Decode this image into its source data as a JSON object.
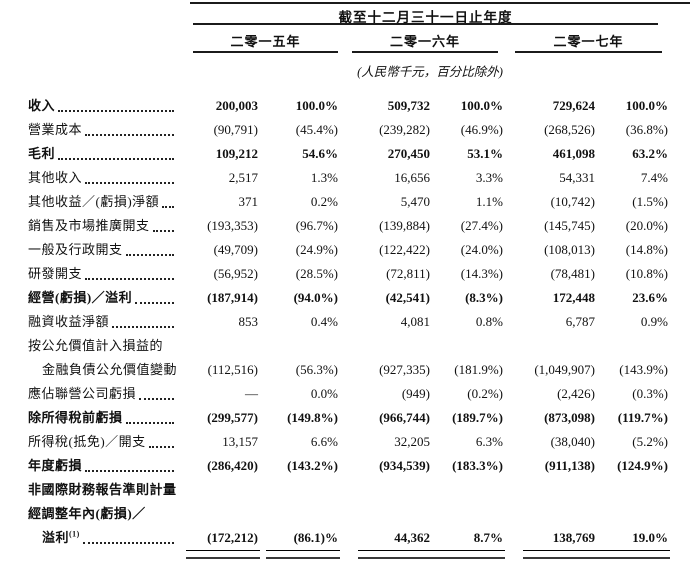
{
  "header": {
    "period_title": "截至十二月三十一日止年度",
    "years": [
      "二零一五年",
      "二零一六年",
      "二零一七年"
    ],
    "unit_note": "(人民幣千元，百分比除外)"
  },
  "table": {
    "columns": [
      "二零一五年 金額",
      "二零一五年 %",
      "二零一六年 金額",
      "二零一六年 %",
      "二零一七年 金額",
      "二零一七年 %"
    ],
    "rows": [
      {
        "label": "收入",
        "bold": true,
        "leader": true,
        "indent": false,
        "values": [
          "200,003",
          "100.0%",
          "509,732",
          "100.0%",
          "729,624",
          "100.0%"
        ]
      },
      {
        "label": "營業成本",
        "bold": false,
        "leader": true,
        "indent": false,
        "values": [
          "(90,791)",
          "(45.4%)",
          "(239,282)",
          "(46.9%)",
          "(268,526)",
          "(36.8%)"
        ]
      },
      {
        "label": "毛利",
        "bold": true,
        "leader": true,
        "indent": false,
        "values": [
          "109,212",
          "54.6%",
          "270,450",
          "53.1%",
          "461,098",
          "63.2%"
        ]
      },
      {
        "label": "其他收入",
        "bold": false,
        "leader": true,
        "indent": false,
        "values": [
          "2,517",
          "1.3%",
          "16,656",
          "3.3%",
          "54,331",
          "7.4%"
        ]
      },
      {
        "label": "其他收益／(虧損)淨額",
        "bold": false,
        "leader": true,
        "indent": false,
        "values": [
          "371",
          "0.2%",
          "5,470",
          "1.1%",
          "(10,742)",
          "(1.5%)"
        ]
      },
      {
        "label": "銷售及市場推廣開支",
        "bold": false,
        "leader": true,
        "indent": false,
        "values": [
          "(193,353)",
          "(96.7%)",
          "(139,884)",
          "(27.4%)",
          "(145,745)",
          "(20.0%)"
        ]
      },
      {
        "label": "一般及行政開支",
        "bold": false,
        "leader": true,
        "indent": false,
        "values": [
          "(49,709)",
          "(24.9%)",
          "(122,422)",
          "(24.0%)",
          "(108,013)",
          "(14.8%)"
        ]
      },
      {
        "label": "研發開支",
        "bold": false,
        "leader": true,
        "indent": false,
        "values": [
          "(56,952)",
          "(28.5%)",
          "(72,811)",
          "(14.3%)",
          "(78,481)",
          "(10.8%)"
        ]
      },
      {
        "label": "經營(虧損)／溢利",
        "bold": true,
        "leader": true,
        "indent": false,
        "values": [
          "(187,914)",
          "(94.0%)",
          "(42,541)",
          "(8.3%)",
          "172,448",
          "23.6%"
        ]
      },
      {
        "label": "融資收益淨額",
        "bold": false,
        "leader": true,
        "indent": false,
        "values": [
          "853",
          "0.4%",
          "4,081",
          "0.8%",
          "6,787",
          "0.9%"
        ]
      },
      {
        "label": "按公允價值計入損益的",
        "bold": false,
        "leader": false,
        "indent": false,
        "values": null
      },
      {
        "label": "金融負債公允價值變動",
        "bold": false,
        "leader": true,
        "indent": true,
        "values": [
          "(112,516)",
          "(56.3%)",
          "(927,335)",
          "(181.9%)",
          "(1,049,907)",
          "(143.9%)"
        ]
      },
      {
        "label": "應佔聯營公司虧損",
        "bold": false,
        "leader": true,
        "indent": false,
        "values": [
          "—",
          "0.0%",
          "(949)",
          "(0.2%)",
          "(2,426)",
          "(0.3%)"
        ]
      },
      {
        "label": "除所得稅前虧損",
        "bold": true,
        "leader": true,
        "indent": false,
        "values": [
          "(299,577)",
          "(149.8%)",
          "(966,744)",
          "(189.7%)",
          "(873,098)",
          "(119.7%)"
        ]
      },
      {
        "label": "所得稅(抵免)／開支",
        "bold": false,
        "leader": true,
        "indent": false,
        "values": [
          "13,157",
          "6.6%",
          "32,205",
          "6.3%",
          "(38,040)",
          "(5.2%)"
        ]
      },
      {
        "label": "年度虧損",
        "bold": true,
        "leader": true,
        "indent": false,
        "values": [
          "(286,420)",
          "(143.2%)",
          "(934,539)",
          "(183.3%)",
          "(911,138)",
          "(124.9%)"
        ]
      },
      {
        "label": "非國際財務報告準則計量",
        "bold": true,
        "leader": false,
        "indent": false,
        "values": null
      },
      {
        "label": "經調整年內(虧損)／",
        "bold": true,
        "leader": false,
        "indent": false,
        "values": null
      },
      {
        "label": "溢利",
        "sup": "(1)",
        "bold": true,
        "leader": true,
        "indent": true,
        "values": [
          "(172,212)",
          "(86.1)%",
          "44,362",
          "8.7%",
          "138,769",
          "19.0%"
        ]
      }
    ]
  }
}
